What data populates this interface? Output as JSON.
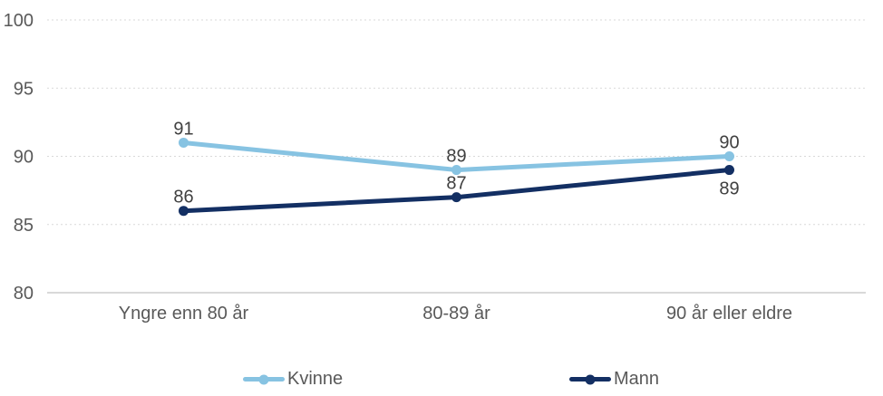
{
  "chart_data": {
    "type": "line",
    "title": "",
    "xlabel": "",
    "ylabel": "",
    "categories": [
      "Yngre enn 80 år",
      "80-89 år",
      "90 år eller eldre"
    ],
    "series": [
      {
        "name": "Kvinne",
        "color": "#87C3E2",
        "values": [
          91,
          89,
          90
        ],
        "label_side": [
          "above",
          "above",
          "above"
        ]
      },
      {
        "name": "Mann",
        "color": "#132F63",
        "values": [
          86,
          87,
          89
        ],
        "label_side": [
          "above",
          "above",
          "below"
        ]
      }
    ],
    "ylim": [
      80,
      100
    ],
    "yticks": [
      80,
      85,
      90,
      95,
      100
    ],
    "grid": true,
    "gridline_style": "dotted",
    "data_labels": true,
    "legend_position": "bottom"
  },
  "colors": {
    "background": "#FFFFFF",
    "grid": "#D9D9D9",
    "axis_line": "#D9D9D9",
    "tick_label": "#595959",
    "category_label": "#595959",
    "data_label": "#404040",
    "legend_label": "#595959"
  }
}
